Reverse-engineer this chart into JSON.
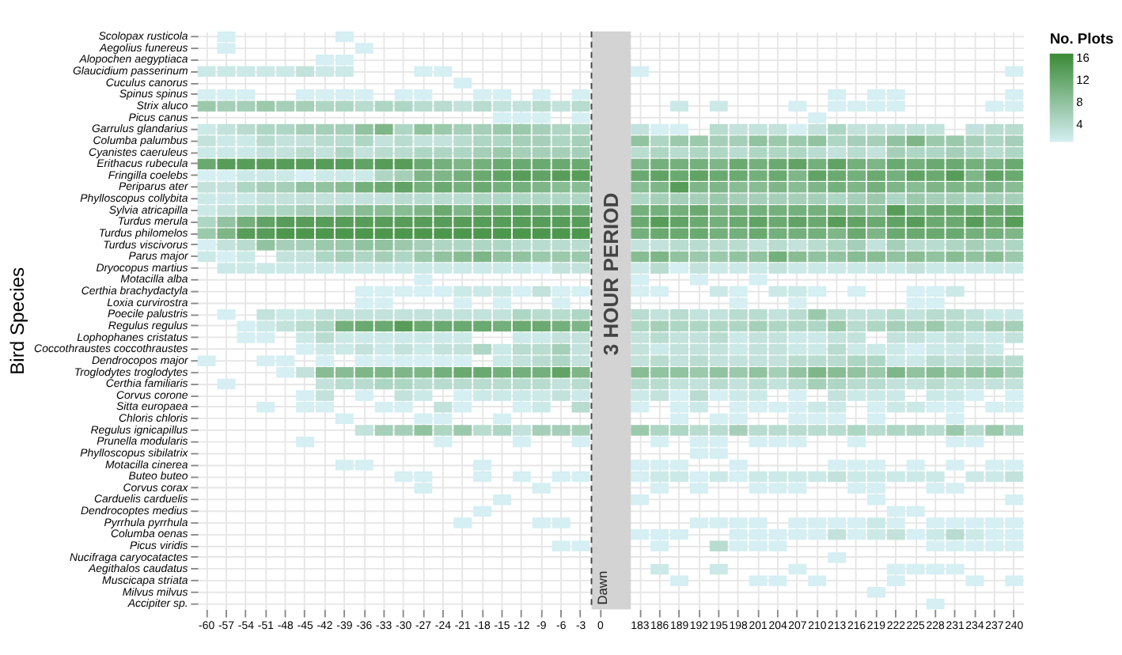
{
  "chart_data": {
    "type": "heatmap",
    "ylabel": "Bird Species",
    "legend_title": "No. Plots",
    "legend": "right",
    "grid": true,
    "categories": [
      "-60",
      "-57",
      "-54",
      "-51",
      "-48",
      "-45",
      "-42",
      "-39",
      "-36",
      "-33",
      "-30",
      "-27",
      "-24",
      "-21",
      "-18",
      "-15",
      "-12",
      "-9",
      "-6",
      "-3",
      "0",
      "183",
      "186",
      "189",
      "192",
      "195",
      "198",
      "201",
      "204",
      "207",
      "210",
      "213",
      "216",
      "219",
      "222",
      "225",
      "228",
      "231",
      "234",
      "237",
      "240"
    ],
    "y_categories": [
      "Scolopax rusticola",
      "Aegolius funereus",
      "Alopochen aegyptiaca",
      "Glaucidium passerinum",
      "Cuculus canorus",
      "Spinus spinus",
      "Strix aluco",
      "Picus canus",
      "Garrulus glandarius",
      "Columba palumbus",
      "Cyanistes caeruleus",
      "Erithacus rubecula",
      "Fringilla coelebs",
      "Periparus ater",
      "Phylloscopus collybita",
      "Sylvia atricapilla",
      "Turdus merula",
      "Turdus philomelos",
      "Turdus viscivorus",
      "Parus major",
      "Dryocopus martius",
      "Motacilla alba",
      "Certhia brachydactyla",
      "Loxia curvirostra",
      "Poecile palustris",
      "Regulus regulus",
      "Lophophanes cristatus",
      "Coccothraustes coccothraustes",
      "Dendrocopos major",
      "Troglodytes troglodytes",
      "Certhia familiaris",
      "Corvus corone",
      "Sitta europaea",
      "Chloris chloris",
      "Regulus ignicapillus",
      "Prunella modularis",
      "Phylloscopus sibilatrix",
      "Motacilla cinerea",
      "Buteo buteo",
      "Corvus corax",
      "Carduelis carduelis",
      "Dendrocoptes medius",
      "Pyrrhula pyrrhula",
      "Columba oenas",
      "Picus viridis",
      "Nucifraga caryocatactes",
      "Aegithalos caudatus",
      "Muscicapa striata",
      "Milvus milvus",
      "Accipiter sp."
    ],
    "cells": [
      [
        null,
        1,
        null,
        null,
        null,
        null,
        null,
        1,
        null,
        null,
        null,
        null,
        null,
        null,
        null,
        null,
        null,
        null,
        null,
        null,
        null,
        null,
        null,
        null,
        null,
        null,
        null,
        null,
        null,
        null,
        null,
        null,
        null,
        null,
        null,
        null,
        null,
        null,
        null,
        null,
        null
      ],
      [
        null,
        1,
        null,
        null,
        null,
        null,
        null,
        null,
        1,
        null,
        null,
        null,
        null,
        null,
        null,
        null,
        null,
        null,
        null,
        null,
        null,
        null,
        null,
        null,
        null,
        null,
        null,
        null,
        null,
        null,
        null,
        null,
        null,
        null,
        null,
        null,
        null,
        null,
        null,
        null,
        null
      ],
      [
        null,
        null,
        null,
        null,
        null,
        null,
        1,
        1,
        null,
        null,
        null,
        null,
        null,
        null,
        null,
        null,
        null,
        null,
        null,
        null,
        null,
        null,
        null,
        null,
        null,
        null,
        null,
        null,
        null,
        null,
        null,
        null,
        null,
        null,
        null,
        null,
        null,
        null,
        null,
        null,
        null
      ],
      [
        2,
        2,
        2,
        2,
        2,
        3,
        2,
        2,
        null,
        null,
        null,
        1,
        1,
        null,
        null,
        null,
        null,
        null,
        null,
        null,
        null,
        1,
        null,
        null,
        null,
        null,
        null,
        null,
        null,
        null,
        null,
        null,
        null,
        null,
        null,
        null,
        null,
        null,
        null,
        null,
        1
      ],
      [
        null,
        null,
        null,
        null,
        null,
        null,
        null,
        null,
        null,
        null,
        null,
        null,
        null,
        1,
        null,
        null,
        null,
        null,
        null,
        null,
        null,
        null,
        null,
        null,
        null,
        null,
        null,
        null,
        null,
        null,
        null,
        null,
        null,
        null,
        null,
        null,
        null,
        null,
        null,
        null,
        null
      ],
      [
        1,
        1,
        1,
        null,
        null,
        1,
        1,
        1,
        1,
        null,
        1,
        1,
        null,
        null,
        1,
        1,
        null,
        1,
        null,
        1,
        null,
        null,
        null,
        null,
        null,
        null,
        null,
        null,
        null,
        null,
        null,
        1,
        null,
        1,
        1,
        null,
        null,
        null,
        null,
        null,
        1
      ],
      [
        7,
        6,
        6,
        7,
        6,
        6,
        5,
        5,
        4,
        5,
        5,
        4,
        4,
        3,
        4,
        3,
        3,
        4,
        3,
        4,
        null,
        null,
        null,
        2,
        null,
        2,
        null,
        null,
        null,
        1,
        null,
        1,
        1,
        1,
        1,
        null,
        null,
        null,
        null,
        1,
        1
      ],
      [
        null,
        null,
        null,
        null,
        null,
        null,
        null,
        null,
        null,
        null,
        null,
        null,
        null,
        null,
        null,
        1,
        1,
        1,
        null,
        1,
        null,
        null,
        null,
        null,
        null,
        null,
        null,
        null,
        null,
        null,
        1,
        null,
        null,
        null,
        null,
        null,
        null,
        null,
        null,
        null,
        null
      ],
      [
        2,
        3,
        4,
        5,
        5,
        6,
        6,
        6,
        8,
        10,
        5,
        8,
        7,
        6,
        6,
        7,
        7,
        6,
        5,
        5,
        null,
        3,
        1,
        1,
        null,
        4,
        3,
        3,
        3,
        1,
        3,
        5,
        3,
        3,
        3,
        3,
        3,
        null,
        3,
        4,
        4
      ],
      [
        3,
        2,
        2,
        4,
        3,
        3,
        4,
        4,
        5,
        3,
        4,
        3,
        3,
        4,
        5,
        5,
        6,
        6,
        5,
        6,
        null,
        8,
        5,
        7,
        7,
        6,
        6,
        8,
        7,
        7,
        8,
        5,
        6,
        6,
        8,
        10,
        7,
        7,
        6,
        5,
        6
      ],
      [
        2,
        2,
        2,
        3,
        3,
        4,
        3,
        5,
        3,
        4,
        4,
        5,
        5,
        5,
        6,
        7,
        6,
        6,
        6,
        6,
        null,
        4,
        5,
        4,
        5,
        5,
        4,
        5,
        5,
        5,
        4,
        3,
        4,
        3,
        6,
        5,
        5,
        6,
        5,
        4,
        5
      ],
      [
        12,
        14,
        14,
        14,
        14,
        14,
        14,
        14,
        13,
        14,
        14,
        12,
        11,
        10,
        11,
        12,
        12,
        12,
        12,
        12,
        null,
        10,
        11,
        11,
        11,
        10,
        12,
        11,
        12,
        13,
        11,
        13,
        11,
        10,
        12,
        11,
        12,
        12,
        11,
        11,
        12
      ],
      [
        1,
        1,
        2,
        2,
        2,
        1,
        2,
        2,
        2,
        5,
        6,
        10,
        10,
        11,
        12,
        13,
        14,
        13,
        14,
        14,
        null,
        12,
        13,
        12,
        13,
        12,
        12,
        11,
        12,
        10,
        13,
        12,
        11,
        12,
        11,
        13,
        12,
        14,
        10,
        13,
        12
      ],
      [
        3,
        3,
        5,
        6,
        6,
        8,
        8,
        9,
        11,
        12,
        13,
        11,
        12,
        11,
        12,
        11,
        11,
        10,
        9,
        9,
        null,
        9,
        10,
        14,
        10,
        10,
        9,
        9,
        10,
        9,
        10,
        11,
        10,
        11,
        10,
        9,
        10,
        10,
        10,
        10,
        9
      ],
      [
        2,
        2,
        2,
        3,
        3,
        3,
        3,
        3,
        3,
        3,
        4,
        4,
        4,
        4,
        5,
        5,
        5,
        5,
        5,
        5,
        null,
        5,
        6,
        6,
        6,
        7,
        6,
        6,
        6,
        6,
        6,
        5,
        6,
        7,
        5,
        7,
        6,
        6,
        5,
        6,
        6
      ],
      [
        2,
        3,
        4,
        5,
        5,
        6,
        6,
        8,
        9,
        9,
        9,
        10,
        12,
        10,
        12,
        12,
        13,
        12,
        12,
        12,
        null,
        11,
        11,
        11,
        12,
        10,
        11,
        11,
        11,
        11,
        11,
        11,
        10,
        9,
        14,
        11,
        12,
        12,
        12,
        12,
        12
      ],
      [
        5,
        8,
        11,
        13,
        14,
        14,
        14,
        14,
        14,
        14,
        14,
        14,
        14,
        14,
        14,
        14,
        14,
        14,
        14,
        14,
        null,
        12,
        14,
        13,
        12,
        11,
        12,
        13,
        12,
        13,
        12,
        14,
        13,
        12,
        13,
        14,
        12,
        12,
        14,
        12,
        14
      ],
      [
        7,
        10,
        14,
        14,
        15,
        15,
        15,
        15,
        15,
        15,
        15,
        15,
        15,
        15,
        15,
        15,
        15,
        15,
        15,
        15,
        null,
        11,
        12,
        12,
        12,
        11,
        11,
        12,
        11,
        11,
        11,
        10,
        12,
        10,
        12,
        12,
        12,
        12,
        11,
        11,
        10
      ],
      [
        1,
        3,
        4,
        8,
        6,
        6,
        7,
        7,
        8,
        8,
        7,
        6,
        5,
        5,
        5,
        5,
        4,
        4,
        4,
        4,
        null,
        3,
        3,
        4,
        4,
        4,
        4,
        3,
        4,
        3,
        4,
        5,
        6,
        3,
        6,
        4,
        4,
        5,
        6,
        5,
        5
      ],
      [
        2,
        1,
        2,
        null,
        3,
        3,
        5,
        6,
        5,
        6,
        5,
        7,
        8,
        9,
        10,
        8,
        8,
        7,
        7,
        7,
        null,
        9,
        10,
        8,
        7,
        7,
        8,
        8,
        11,
        9,
        8,
        8,
        9,
        9,
        8,
        9,
        8,
        9,
        8,
        9,
        7
      ],
      [
        null,
        2,
        2,
        2,
        2,
        2,
        2,
        2,
        2,
        2,
        2,
        2,
        2,
        2,
        2,
        2,
        2,
        1,
        3,
        3,
        null,
        2,
        4,
        1,
        3,
        2,
        2,
        2,
        3,
        2,
        2,
        2,
        2,
        2,
        2,
        3,
        2,
        2,
        2,
        2,
        2
      ],
      [
        null,
        null,
        null,
        null,
        null,
        null,
        null,
        null,
        null,
        null,
        null,
        1,
        null,
        null,
        null,
        null,
        null,
        null,
        null,
        null,
        null,
        1,
        null,
        null,
        1,
        null,
        null,
        1,
        null,
        null,
        null,
        null,
        null,
        null,
        null,
        null,
        null,
        null,
        null,
        null,
        null
      ],
      [
        null,
        null,
        null,
        null,
        null,
        null,
        null,
        null,
        1,
        1,
        1,
        1,
        1,
        2,
        2,
        2,
        1,
        3,
        1,
        1,
        null,
        1,
        1,
        null,
        null,
        2,
        1,
        null,
        2,
        2,
        1,
        null,
        1,
        null,
        null,
        1,
        1,
        2,
        null,
        null,
        null
      ],
      [
        null,
        null,
        null,
        null,
        null,
        null,
        null,
        null,
        1,
        1,
        null,
        null,
        null,
        1,
        null,
        1,
        null,
        null,
        1,
        null,
        null,
        null,
        null,
        null,
        null,
        null,
        1,
        null,
        null,
        1,
        null,
        null,
        null,
        null,
        null,
        1,
        1,
        null,
        null,
        null,
        null
      ],
      [
        null,
        1,
        null,
        3,
        2,
        2,
        3,
        3,
        3,
        3,
        3,
        3,
        3,
        3,
        3,
        3,
        5,
        4,
        4,
        5,
        null,
        4,
        3,
        4,
        3,
        3,
        4,
        4,
        3,
        4,
        7,
        4,
        3,
        3,
        4,
        3,
        4,
        4,
        3,
        2,
        2
      ],
      [
        null,
        null,
        1,
        2,
        3,
        4,
        5,
        11,
        12,
        12,
        14,
        12,
        12,
        12,
        12,
        11,
        12,
        12,
        11,
        10,
        null,
        5,
        6,
        5,
        5,
        5,
        5,
        6,
        5,
        5,
        5,
        7,
        4,
        5,
        6,
        6,
        7,
        5,
        5,
        6,
        6
      ],
      [
        null,
        null,
        1,
        1,
        null,
        2,
        4,
        2,
        2,
        2,
        2,
        2,
        2,
        2,
        null,
        null,
        2,
        2,
        3,
        3,
        null,
        3,
        4,
        3,
        3,
        4,
        2,
        3,
        3,
        2,
        2,
        3,
        3,
        null,
        3,
        3,
        2,
        3,
        2,
        2,
        3
      ],
      [
        null,
        null,
        null,
        null,
        null,
        1,
        2,
        2,
        3,
        2,
        3,
        2,
        3,
        3,
        5,
        2,
        4,
        4,
        6,
        3,
        null,
        3,
        2,
        3,
        3,
        3,
        2,
        3,
        3,
        2,
        2,
        4,
        2,
        2,
        2,
        1,
        2,
        2,
        3,
        2,
        null
      ],
      [
        1,
        null,
        null,
        1,
        1,
        null,
        1,
        null,
        1,
        1,
        1,
        1,
        1,
        1,
        null,
        2,
        3,
        4,
        5,
        3,
        null,
        3,
        4,
        3,
        4,
        3,
        3,
        3,
        3,
        4,
        4,
        4,
        5,
        5,
        2,
        2,
        4,
        3,
        4,
        4,
        4
      ],
      [
        null,
        null,
        null,
        null,
        1,
        3,
        9,
        9,
        10,
        10,
        10,
        10,
        11,
        12,
        12,
        11,
        11,
        11,
        13,
        10,
        null,
        9,
        8,
        8,
        7,
        8,
        7,
        8,
        6,
        8,
        10,
        9,
        8,
        7,
        10,
        8,
        9,
        8,
        8,
        8,
        6
      ],
      [
        null,
        1,
        null,
        null,
        null,
        null,
        3,
        4,
        4,
        5,
        5,
        4,
        4,
        4,
        4,
        4,
        4,
        4,
        3,
        4,
        null,
        4,
        4,
        3,
        3,
        4,
        3,
        4,
        3,
        4,
        6,
        5,
        4,
        4,
        3,
        3,
        4,
        3,
        3,
        3,
        3
      ],
      [
        null,
        null,
        null,
        null,
        null,
        1,
        3,
        null,
        1,
        null,
        3,
        2,
        null,
        1,
        2,
        2,
        2,
        2,
        3,
        2,
        null,
        2,
        3,
        1,
        4,
        1,
        2,
        2,
        null,
        1,
        null,
        3,
        2,
        2,
        2,
        null,
        2,
        2,
        1,
        null,
        1
      ],
      [
        null,
        null,
        null,
        1,
        null,
        1,
        1,
        null,
        null,
        1,
        1,
        null,
        3,
        1,
        null,
        null,
        1,
        2,
        null,
        4,
        null,
        1,
        null,
        1,
        2,
        null,
        1,
        1,
        1,
        1,
        2,
        2,
        null,
        1,
        2,
        2,
        1,
        1,
        null,
        1,
        1
      ],
      [
        null,
        null,
        null,
        null,
        null,
        null,
        null,
        1,
        null,
        null,
        null,
        1,
        1,
        null,
        null,
        1,
        null,
        null,
        null,
        null,
        null,
        null,
        null,
        1,
        null,
        1,
        1,
        null,
        null,
        1,
        1,
        1,
        null,
        1,
        null,
        null,
        null,
        1,
        null,
        null,
        null
      ],
      [
        null,
        null,
        null,
        null,
        null,
        null,
        null,
        null,
        3,
        6,
        6,
        8,
        5,
        7,
        4,
        5,
        3,
        6,
        6,
        6,
        null,
        7,
        5,
        5,
        4,
        4,
        6,
        4,
        4,
        4,
        4,
        4,
        5,
        4,
        5,
        5,
        4,
        7,
        4,
        7,
        5
      ],
      [
        null,
        null,
        null,
        null,
        null,
        1,
        null,
        null,
        null,
        null,
        null,
        null,
        1,
        null,
        null,
        null,
        1,
        null,
        null,
        1,
        null,
        null,
        1,
        null,
        1,
        1,
        null,
        1,
        1,
        1,
        null,
        null,
        1,
        null,
        null,
        null,
        null,
        1,
        1,
        null,
        null
      ],
      [
        null,
        null,
        null,
        null,
        null,
        null,
        null,
        null,
        null,
        null,
        null,
        null,
        null,
        null,
        null,
        null,
        null,
        null,
        null,
        null,
        null,
        null,
        null,
        null,
        1,
        1,
        null,
        null,
        null,
        null,
        null,
        null,
        null,
        null,
        null,
        null,
        null,
        null,
        null,
        null,
        null
      ],
      [
        null,
        null,
        null,
        null,
        null,
        null,
        null,
        1,
        1,
        null,
        null,
        null,
        null,
        null,
        1,
        null,
        null,
        null,
        null,
        null,
        null,
        1,
        1,
        1,
        null,
        null,
        1,
        null,
        null,
        null,
        null,
        1,
        1,
        1,
        null,
        1,
        null,
        1,
        null,
        1,
        1
      ],
      [
        null,
        null,
        null,
        null,
        null,
        null,
        null,
        null,
        null,
        null,
        1,
        1,
        null,
        null,
        1,
        null,
        1,
        null,
        1,
        1,
        null,
        1,
        2,
        2,
        1,
        2,
        1,
        2,
        2,
        2,
        2,
        3,
        2,
        2,
        2,
        2,
        2,
        null,
        2,
        2,
        3
      ],
      [
        null,
        null,
        null,
        null,
        null,
        null,
        null,
        null,
        null,
        null,
        null,
        1,
        null,
        null,
        null,
        null,
        null,
        1,
        null,
        null,
        null,
        null,
        1,
        null,
        1,
        null,
        null,
        1,
        1,
        1,
        null,
        null,
        1,
        1,
        null,
        null,
        1,
        1,
        null,
        null,
        null
      ],
      [
        null,
        null,
        null,
        null,
        null,
        null,
        null,
        null,
        null,
        null,
        null,
        null,
        null,
        null,
        null,
        1,
        null,
        null,
        null,
        null,
        null,
        1,
        null,
        null,
        null,
        null,
        null,
        null,
        null,
        null,
        null,
        null,
        null,
        1,
        null,
        null,
        null,
        null,
        null,
        null,
        1
      ],
      [
        null,
        null,
        null,
        null,
        null,
        null,
        null,
        null,
        null,
        null,
        null,
        null,
        null,
        null,
        1,
        null,
        null,
        null,
        null,
        null,
        null,
        null,
        null,
        null,
        null,
        null,
        null,
        null,
        null,
        null,
        null,
        null,
        null,
        null,
        1,
        1,
        null,
        null,
        null,
        null,
        null
      ],
      [
        null,
        null,
        null,
        null,
        null,
        null,
        null,
        null,
        null,
        null,
        null,
        null,
        null,
        1,
        null,
        null,
        null,
        1,
        1,
        null,
        null,
        null,
        null,
        null,
        1,
        1,
        1,
        1,
        null,
        1,
        1,
        1,
        1,
        2,
        1,
        null,
        1,
        1,
        1,
        1,
        1
      ],
      [
        null,
        null,
        null,
        null,
        null,
        null,
        null,
        null,
        null,
        null,
        null,
        null,
        null,
        null,
        null,
        null,
        null,
        null,
        null,
        null,
        null,
        1,
        1,
        1,
        null,
        null,
        1,
        1,
        1,
        1,
        1,
        3,
        1,
        2,
        3,
        1,
        2,
        4,
        2,
        1,
        1
      ],
      [
        null,
        null,
        null,
        null,
        null,
        null,
        null,
        null,
        null,
        null,
        null,
        null,
        null,
        null,
        null,
        null,
        null,
        null,
        1,
        1,
        null,
        null,
        1,
        null,
        null,
        4,
        1,
        1,
        1,
        null,
        null,
        null,
        null,
        null,
        null,
        null,
        1,
        1,
        1,
        1,
        1
      ],
      [
        null,
        null,
        null,
        null,
        null,
        null,
        null,
        null,
        null,
        null,
        null,
        null,
        null,
        null,
        null,
        null,
        null,
        null,
        null,
        null,
        null,
        null,
        null,
        null,
        null,
        null,
        null,
        null,
        null,
        null,
        null,
        1,
        null,
        null,
        null,
        null,
        null,
        null,
        null,
        null,
        null
      ],
      [
        null,
        null,
        null,
        null,
        null,
        null,
        null,
        null,
        null,
        null,
        null,
        null,
        null,
        null,
        null,
        null,
        null,
        null,
        null,
        null,
        null,
        null,
        2,
        null,
        null,
        2,
        null,
        null,
        null,
        1,
        null,
        null,
        null,
        null,
        1,
        1,
        1,
        1,
        null,
        null,
        null
      ],
      [
        null,
        null,
        null,
        null,
        null,
        null,
        null,
        null,
        null,
        null,
        null,
        null,
        null,
        null,
        null,
        null,
        null,
        null,
        null,
        null,
        null,
        null,
        null,
        1,
        null,
        null,
        null,
        1,
        1,
        null,
        1,
        null,
        null,
        null,
        1,
        null,
        null,
        null,
        1,
        null,
        1
      ],
      [
        null,
        null,
        null,
        null,
        null,
        null,
        null,
        null,
        null,
        null,
        null,
        null,
        null,
        null,
        null,
        null,
        null,
        null,
        null,
        null,
        null,
        null,
        null,
        null,
        null,
        null,
        null,
        null,
        null,
        null,
        null,
        null,
        null,
        1,
        null,
        null,
        null,
        null,
        null,
        null,
        null
      ],
      [
        null,
        null,
        null,
        null,
        null,
        null,
        null,
        null,
        null,
        null,
        null,
        null,
        null,
        null,
        null,
        null,
        null,
        null,
        null,
        null,
        null,
        null,
        null,
        null,
        null,
        null,
        null,
        null,
        null,
        null,
        null,
        null,
        null,
        null,
        null,
        null,
        1,
        null,
        null,
        null,
        null
      ]
    ],
    "clim": [
      1,
      17
    ],
    "cticks": [
      4,
      8,
      12,
      16
    ],
    "colors": [
      "#d5eff3",
      "#3a8a35"
    ],
    "ref_lines": [
      {
        "axis": "x",
        "value": "0",
        "label": "Dawn",
        "line_style": "dashed",
        "color": "#444444"
      }
    ],
    "bands": [
      {
        "axis": "x",
        "from": "0",
        "to": "183",
        "label": "3 HOUR PERIOD",
        "color": "#d3d3d3"
      }
    ]
  }
}
